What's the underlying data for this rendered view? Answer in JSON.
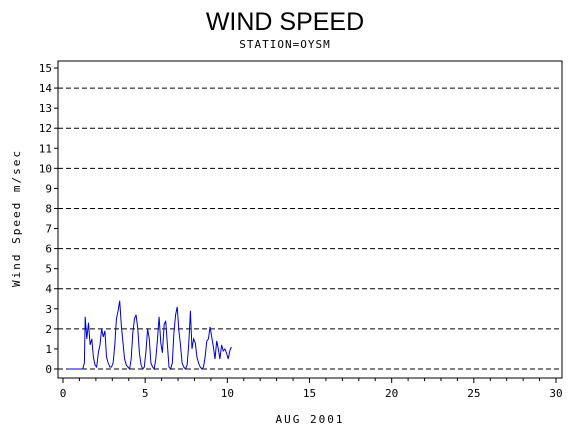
{
  "chart_data": {
    "type": "line",
    "title": "WIND SPEED",
    "subtitle": "STATION=OYSM",
    "xlabel": "AUG 2001",
    "ylabel": "Wind Speed m/sec",
    "xlim": [
      0,
      30
    ],
    "ylim": [
      0,
      15
    ],
    "xticks": [
      0,
      5,
      10,
      15,
      20,
      25,
      30
    ],
    "yticks": [
      0,
      1,
      2,
      3,
      4,
      5,
      6,
      7,
      8,
      9,
      10,
      11,
      12,
      13,
      14,
      15
    ],
    "gridlines_y": [
      2,
      4,
      6,
      8,
      10,
      12,
      14
    ],
    "grid": "dashed horizontal",
    "series_color": "#0000cc",
    "series": [
      {
        "x": [
          0.3,
          1.2,
          1.3,
          1.35,
          1.45,
          1.55,
          1.65,
          1.75,
          1.85,
          1.95,
          2.05,
          2.15,
          2.25,
          2.35,
          2.45,
          2.55,
          2.65,
          2.75,
          2.85,
          2.95,
          3.05,
          3.15,
          3.25,
          3.35,
          3.45,
          3.55,
          3.65,
          3.75,
          3.85,
          3.95,
          4.05,
          4.15,
          4.25,
          4.35,
          4.45,
          4.55,
          4.65,
          4.75,
          4.85,
          4.95,
          5.05,
          5.15,
          5.25,
          5.35,
          5.45,
          5.55,
          5.65,
          5.75,
          5.85,
          5.95,
          6.05,
          6.15,
          6.25,
          6.35,
          6.45,
          6.55,
          6.65,
          6.75,
          6.85,
          6.95,
          7.05,
          7.15,
          7.25,
          7.35,
          7.45,
          7.55,
          7.65,
          7.75,
          7.85,
          7.95,
          8.05,
          8.15,
          8.25,
          8.35,
          8.45,
          8.55,
          8.65,
          8.75,
          8.85,
          8.95,
          9.05,
          9.15,
          9.25,
          9.35,
          9.45,
          9.55,
          9.65,
          9.75,
          9.85,
          9.95,
          10.05,
          10.15,
          10.25
        ],
        "y": [
          0,
          0,
          0.3,
          2.6,
          1.5,
          2.3,
          1.2,
          1.5,
          0.6,
          0.2,
          0.1,
          0.8,
          1.2,
          2.0,
          1.6,
          1.9,
          0.6,
          0.3,
          0.1,
          0.1,
          0.3,
          1.2,
          2.5,
          2.9,
          3.4,
          2.2,
          1.3,
          0.5,
          0.2,
          0.1,
          0,
          0.5,
          1.8,
          2.5,
          2.7,
          2.0,
          0.8,
          0.2,
          0,
          0.1,
          0.9,
          2.0,
          1.5,
          0.3,
          0.1,
          0,
          0.5,
          1.5,
          2.6,
          1.3,
          0.8,
          2.2,
          2.4,
          1.2,
          0.1,
          0,
          0.3,
          1.8,
          2.7,
          3.1,
          1.9,
          1.2,
          0.3,
          0.1,
          0,
          0.2,
          1.2,
          2.9,
          1.0,
          1.5,
          1.3,
          0.6,
          0.3,
          0.1,
          0,
          0.1,
          0.6,
          1.4,
          1.5,
          2.1,
          1.6,
          1.1,
          0.5,
          1.4,
          1.0,
          0.5,
          1.2,
          0.9,
          1.0,
          0.8,
          0.5,
          0.9,
          1.1
        ]
      }
    ]
  }
}
